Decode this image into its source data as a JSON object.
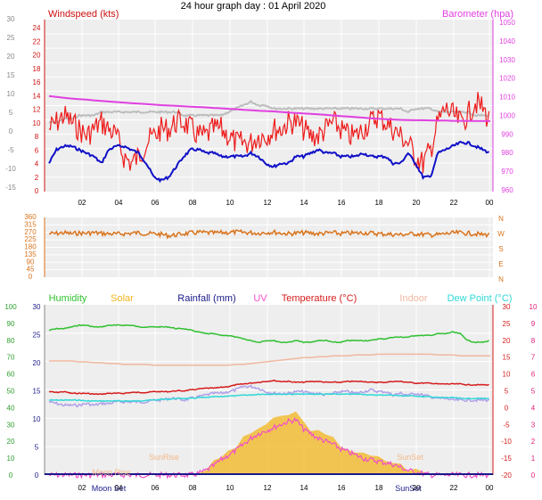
{
  "title": "24 hour graph day : 01 April 2020",
  "colors": {
    "wind": "#ee1c1c",
    "gust_bg": "#bdbdbd",
    "avg": "#1010c8",
    "baro": "#e040e0",
    "dir": "#d9731c",
    "hum": "#30c030",
    "solar": "#f2b51c",
    "rain": "#1a1a8a",
    "uv": "#f050c8",
    "temp": "#d61c1c",
    "indoor": "#f0b8a0",
    "dew": "#30d8d8",
    "left_axis": "#cc1111",
    "green_axis": "#30a030",
    "pink_axis": "#e0207a",
    "plot_bg": "#eeeeee",
    "grid": "#ffffff"
  },
  "x_ticks": [
    "02",
    "04",
    "06",
    "08",
    "10",
    "12",
    "14",
    "16",
    "18",
    "20",
    "22",
    "00"
  ],
  "chart_data": [
    {
      "type": "line",
      "name": "wind-chart",
      "ylabel_left": "Windspeed (kts)",
      "ylabel_right": "Barometer (hpa)",
      "left_ticks": [
        "24",
        "22",
        "20",
        "18",
        "16",
        "14",
        "12",
        "10",
        "8",
        "6",
        "4",
        "2",
        "0"
      ],
      "outer_ticks": [
        "30",
        "25",
        "20",
        "15",
        "10",
        "5",
        "0",
        "-5",
        "-10",
        "-15"
      ],
      "right_ticks": [
        "1050",
        "1040",
        "1030",
        "1020",
        "1010",
        "1000",
        "990",
        "980",
        "970",
        "960"
      ],
      "series": [
        {
          "key": "wind",
          "values": [
            9,
            10,
            11,
            10,
            9,
            8,
            9,
            10,
            9,
            8,
            5,
            4,
            5,
            7,
            8,
            9,
            9,
            10,
            10,
            9,
            8,
            8,
            9,
            9,
            8,
            7,
            7,
            7,
            8,
            8,
            9,
            9,
            10,
            10,
            9,
            8,
            8,
            9,
            10,
            9,
            8,
            8,
            9,
            10,
            11,
            10,
            9,
            8,
            7,
            5,
            4,
            6,
            10,
            12,
            11,
            10,
            11,
            13,
            12,
            10
          ]
        },
        {
          "key": "avg",
          "values": [
            4,
            6,
            6.5,
            6.5,
            6,
            5.5,
            5,
            4,
            6,
            6.5,
            6.5,
            6,
            5.5,
            4,
            2,
            1.5,
            2,
            3.5,
            5,
            6,
            6,
            5.5,
            5.5,
            5,
            5,
            5,
            5,
            5.5,
            5,
            4,
            3.5,
            4,
            4,
            5,
            5,
            5.5,
            6,
            5.5,
            5.5,
            5,
            5,
            5,
            5.5,
            5,
            5,
            5,
            4,
            4,
            5.5,
            4,
            2,
            2,
            5.5,
            6,
            6.5,
            7,
            7,
            6.5,
            6,
            5.5
          ]
        },
        {
          "key": "gust_bg",
          "values": [
            10,
            10,
            10.5,
            10.5,
            11,
            11,
            11,
            11.5,
            11.5,
            11.5,
            11.5,
            11.5,
            11.5,
            11.5,
            11.5,
            11.5,
            11.5,
            11.5,
            11,
            11,
            11,
            11,
            11,
            11,
            11.5,
            12,
            12.5,
            13,
            12.5,
            12.5,
            12,
            12,
            12,
            12,
            12,
            12,
            12,
            12,
            12,
            12,
            12,
            12,
            12,
            12,
            12,
            12,
            12,
            12,
            11.5,
            12,
            12,
            12,
            11.5,
            11.5,
            11.5,
            11.5,
            11.5,
            11,
            11,
            11
          ]
        },
        {
          "key": "baro",
          "values": [
            1009,
            1008.5,
            1008,
            1007.6,
            1007.3,
            1007,
            1006.6,
            1006.3,
            1006,
            1005.7,
            1005.4,
            1005.1,
            1004.8,
            1004.6,
            1004.3,
            1004,
            1003.8,
            1003.6,
            1003.4,
            1003.2,
            1003,
            1002.8,
            1002.5,
            1002.3,
            1002,
            1001.8,
            1001.5,
            1001.3,
            1001,
            1000.8,
            1000.6,
            1000.3,
            1000,
            999.8,
            999.5,
            999.3,
            999,
            998.7,
            998.4,
            998.1,
            997.8,
            997.5,
            997.2,
            996.9,
            996.6,
            996.4,
            996.2,
            996,
            995.9,
            995.8,
            995.8,
            995.7,
            995.6,
            995.6,
            995.5,
            995.5,
            995.5,
            995.4,
            995.4,
            995.4
          ]
        }
      ],
      "ylim_left": [
        0,
        25
      ],
      "ylim_right": [
        958,
        1050
      ]
    },
    {
      "type": "line",
      "name": "direction-chart",
      "left_ticks": [
        "360",
        "315",
        "270",
        "225",
        "180",
        "135",
        "90",
        "45",
        "0"
      ],
      "right_ticks": [
        "N",
        "W",
        "S",
        "E",
        "N"
      ],
      "series": [
        {
          "key": "dir",
          "values": [
            262,
            264,
            268,
            262,
            266,
            265,
            268,
            264,
            262,
            260,
            262,
            265,
            268,
            262,
            262,
            258,
            250,
            255,
            262,
            266,
            270,
            268,
            266,
            268,
            270,
            272,
            270,
            268,
            266,
            270,
            272,
            266,
            262,
            265,
            268,
            266,
            262,
            265,
            268,
            262,
            266,
            265,
            268,
            266,
            262,
            260,
            258,
            256,
            260,
            262,
            258,
            255,
            256,
            262,
            266,
            268,
            264,
            262,
            256,
            258
          ]
        }
      ],
      "ylim": [
        0,
        360
      ]
    },
    {
      "type": "line",
      "name": "multi-chart",
      "legend": [
        "Humidity",
        "Solar",
        "Rainfall (mm)",
        "UV",
        "Temperature (°C)",
        "Indoor",
        "Dew Point (°C)"
      ],
      "left_ticks": [
        "100",
        "90",
        "80",
        "70",
        "60",
        "50",
        "40",
        "30",
        "20",
        "10",
        "0"
      ],
      "mid_ticks": [
        "30",
        "25",
        "20",
        "15",
        "10",
        "5",
        "0"
      ],
      "right_ticks": [
        "30",
        "25",
        "20",
        "15",
        "10",
        "5",
        "0",
        "-5",
        "-10",
        "-15",
        "-20"
      ],
      "uv_ticks": [
        "10",
        "9",
        "8",
        "7",
        "6",
        "5",
        "4",
        "3",
        "2",
        "1",
        "0"
      ],
      "annotations": [
        "SunRise",
        "SunSet",
        "Moon Set",
        "Moon Rise",
        "SunSet"
      ],
      "series": [
        {
          "key": "hum",
          "values": [
            85,
            86,
            86,
            87,
            88,
            88,
            87,
            87,
            88,
            88,
            88,
            88,
            87,
            87,
            87,
            87,
            87,
            86,
            86,
            85,
            84,
            83,
            83,
            82,
            82,
            81,
            80,
            79,
            78,
            79,
            79,
            78,
            78,
            79,
            78,
            78,
            79,
            79,
            78,
            78,
            79,
            79,
            79,
            79,
            80,
            80,
            81,
            81,
            81,
            82,
            82,
            82,
            83,
            83,
            84,
            83,
            79,
            78,
            78,
            79
          ]
        },
        {
          "key": "indoor",
          "values": [
            67,
            67,
            67,
            67,
            66.5,
            66.5,
            66,
            66,
            65.5,
            65.5,
            65,
            65,
            65,
            65,
            64.5,
            64.5,
            64.5,
            64.5,
            64.5,
            64.5,
            64.5,
            64.5,
            64.5,
            64.5,
            64.5,
            65,
            65,
            65.5,
            66,
            66.5,
            67,
            67.5,
            68,
            68.5,
            69,
            69,
            69.5,
            69.5,
            70,
            70,
            70,
            70.5,
            70.5,
            70.5,
            71,
            71,
            71,
            71,
            71,
            71,
            71,
            71,
            70.5,
            70.5,
            70.5,
            70,
            70,
            70,
            70,
            70
          ]
        },
        {
          "key": "temp",
          "values": [
            49,
            48.5,
            49,
            48,
            48,
            48,
            47.5,
            47.5,
            48,
            48,
            48,
            48.5,
            48.5,
            48.5,
            49,
            49,
            49,
            49.5,
            49.5,
            50,
            50.5,
            51,
            51,
            51.5,
            52,
            53,
            53.5,
            54,
            54.5,
            55,
            55.5,
            55,
            55,
            54.5,
            54.5,
            55,
            55,
            54.5,
            54.5,
            54.5,
            55,
            55,
            55,
            54.5,
            54.5,
            54.5,
            55,
            55,
            54.5,
            54,
            54,
            54,
            53.5,
            53.5,
            53.5,
            53.5,
            53,
            53,
            53,
            53
          ]
        },
        {
          "key": "dew",
          "values": [
            44,
            44,
            44,
            44,
            44,
            43.5,
            43.5,
            43.5,
            43.5,
            43.5,
            43.5,
            43.5,
            43.5,
            44,
            44,
            44.5,
            44.5,
            45,
            45,
            45,
            45.5,
            45.5,
            46,
            46,
            46.5,
            46.5,
            47,
            47,
            47.5,
            47.5,
            47.5,
            47.5,
            47.5,
            47.5,
            47.5,
            47.5,
            47.5,
            47.5,
            47.5,
            47.5,
            47.5,
            47.5,
            47.5,
            47,
            47,
            47,
            47,
            46.5,
            46.5,
            46.5,
            46,
            46,
            45.5,
            45.5,
            45.5,
            45,
            45,
            45,
            45,
            45
          ]
        },
        {
          "key": "uv",
          "values": [
            43,
            42,
            41,
            41,
            41,
            42,
            41,
            42,
            42,
            43,
            43,
            43,
            43,
            43,
            44,
            44,
            45,
            45,
            44,
            45,
            46,
            47,
            48,
            48,
            49,
            50,
            52,
            52,
            51,
            49,
            48,
            48,
            48,
            49,
            49,
            48,
            48,
            47,
            48,
            49,
            49,
            48,
            49,
            50,
            49,
            49,
            47,
            48,
            47,
            48,
            47,
            46,
            45,
            45,
            44,
            44,
            44,
            44,
            44,
            44
          ]
        },
        {
          "key": "solar",
          "values": [
            0,
            0,
            0,
            0,
            0,
            0,
            0,
            0,
            0,
            0,
            0,
            0,
            0,
            0,
            0,
            0,
            0,
            0,
            0,
            0,
            1,
            3,
            6,
            10,
            13,
            16,
            20,
            24,
            27,
            29,
            31,
            33,
            35,
            36,
            30,
            27,
            24,
            22,
            20,
            17,
            15,
            13,
            11,
            10,
            9,
            8,
            7,
            5,
            3,
            2,
            1,
            0,
            0,
            0,
            0,
            0,
            0,
            0,
            0,
            0
          ]
        }
      ],
      "ylim": [
        0,
        100
      ]
    }
  ]
}
